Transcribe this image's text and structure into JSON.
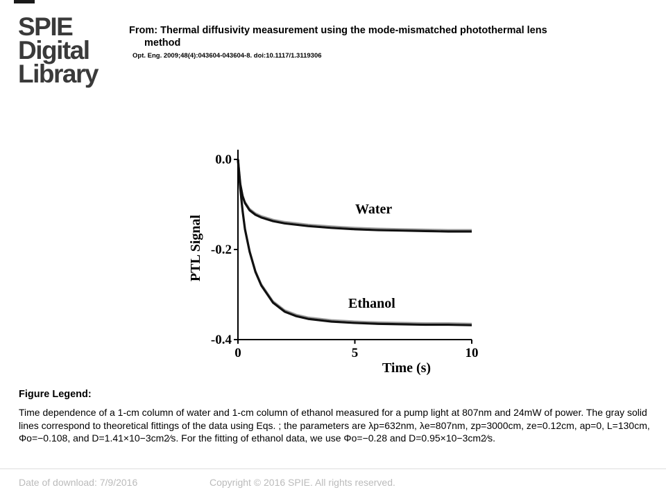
{
  "header": {
    "logo_lines": [
      "SPIE",
      "Digital",
      "Library"
    ],
    "from_line": "From: Thermal diffusivity measurement using the mode-mismatched photothermal lens",
    "from_line_cont": "method",
    "citation": "Opt. Eng. 2009;48(4):043604-043604-8. doi:10.1117/1.3119306"
  },
  "chart_data": {
    "type": "line",
    "xlabel": "Time (s)",
    "ylabel": "PTL Signal",
    "xlim": [
      0,
      10
    ],
    "ylim": [
      -0.4,
      0.0
    ],
    "x_ticks": [
      "0",
      "5",
      "10"
    ],
    "y_ticks": [
      "0.0",
      "-0.2",
      "-0.4"
    ],
    "grid": false,
    "series": [
      {
        "name": "Water",
        "x": [
          0,
          0.1,
          0.2,
          0.3,
          0.5,
          0.75,
          1,
          1.5,
          2,
          3,
          4,
          5,
          6,
          7,
          8,
          9,
          10
        ],
        "y": [
          0,
          -0.055,
          -0.082,
          -0.097,
          -0.113,
          -0.123,
          -0.129,
          -0.137,
          -0.142,
          -0.148,
          -0.152,
          -0.155,
          -0.157,
          -0.158,
          -0.159,
          -0.16,
          -0.16
        ]
      },
      {
        "name": "Ethanol",
        "x": [
          0,
          0.1,
          0.2,
          0.3,
          0.5,
          0.75,
          1,
          1.5,
          2,
          2.5,
          3,
          4,
          5,
          6,
          7,
          8,
          9,
          10
        ],
        "y": [
          0,
          -0.065,
          -0.115,
          -0.155,
          -0.205,
          -0.25,
          -0.28,
          -0.318,
          -0.338,
          -0.348,
          -0.354,
          -0.36,
          -0.363,
          -0.365,
          -0.366,
          -0.367,
          -0.367,
          -0.368
        ]
      }
    ],
    "colors": {
      "data": "#111111",
      "fit": "#9a9a9a"
    }
  },
  "legend": {
    "title": "Figure Legend:",
    "text": "Time dependence of a 1-cm column of water and 1-cm column of ethanol measured for a pump light at 807nm and 24mW of power. The gray solid lines correspond to theoretical fittings of the data using Eqs. ; the parameters are λp=632nm, λe=807nm, zp=3000cm, ze=0.12cm, ap=0, L=130cm, Φo=−0.108, and D=1.41×10−3cm2⁄s. For the fitting of ethanol data, we use Φo=−0.28 and D=0.95×10−3cm2⁄s."
  },
  "footer": {
    "date": "Date of download:  7/9/2016",
    "copyright": "Copyright © 2016 SPIE. All rights reserved."
  }
}
